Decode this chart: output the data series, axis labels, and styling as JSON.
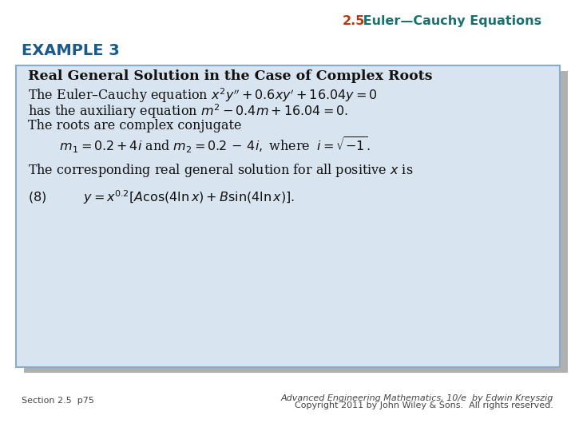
{
  "bg_color": "#ffffff",
  "header_num": "2.5",
  "header_num_color": "#b5390a",
  "header_text": " Euler—Cauchy Equations",
  "header_text_color": "#1a7070",
  "example_label": "EXAMPLE 3",
  "example_color": "#1a5a8a",
  "box_bg": "#d8e4f0",
  "box_border": "#8aaacc",
  "shadow_color": "#b0b0b0",
  "text_color": "#111111",
  "footer_color": "#444444",
  "footer_left": "Section 2.5  p75",
  "footer_right1": "Advanced Engineering Mathematics, 10/e  by Edwin Kreyszig",
  "footer_right2": "Copyright 2011 by John Wiley & Sons.  All rights reserved.",
  "title_bold": "Real General Solution in the Case of Complex Roots",
  "line1": "The Euler–Cauchy equation $x^2y'' + 0.6xy' + 16.04y = 0$",
  "line2": "has the auxiliary equation $m^2 - 0.4m + 16.04 = 0.$",
  "line3": "The roots are complex conjugate",
  "line4": "$\\quad\\quad\\;\\; m_1 = 0.2 + 4i$ and $m_2 = 0.2 \\,-\\, 4i,$ where $\\;i = \\sqrt{-1}.$",
  "line5": "The corresponding real general solution for all positive $x$ is",
  "line6": "$(8)\\qquad\\quad y = x^{0.2}[A\\cos(4\\ln x) + B\\sin(4\\ln x)].$"
}
